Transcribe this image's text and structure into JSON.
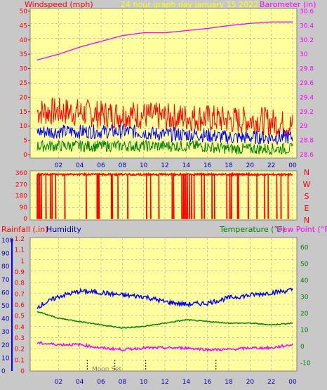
{
  "header": {
    "left_label": "Windspeed (mph)",
    "center_label": "24 hour graph day   January 15 2022",
    "right_label": "Barometer (in)"
  },
  "colors": {
    "background": "#c8c8c8",
    "plot_bg": "#ffffa0",
    "red": "#ff0000",
    "blue": "#0000ff",
    "green": "#008000",
    "magenta": "#ff00ff",
    "yellow_text": "#ffff00",
    "dark_blue_text": "#0000c0"
  },
  "compass": [
    "N",
    "W",
    "S",
    "E",
    "N"
  ],
  "bottom": {
    "rain_label": "Rainfall (.in)",
    "humidity_label": "Humidity",
    "temp_label": "Temperature (°F)",
    "dew_label": "Dew Point (°F)",
    "moonset_label": "Moon Set"
  },
  "chart_data": [
    {
      "type": "line",
      "x_ticks": [
        "02",
        "04",
        "06",
        "08",
        "10",
        "12",
        "14",
        "16",
        "18",
        "20",
        "22",
        "00"
      ],
      "y_left": {
        "label": "Windspeed (mph)",
        "ticks": [
          0,
          5,
          10,
          15,
          20,
          25,
          30,
          35,
          40,
          45,
          50
        ],
        "ylim": [
          0,
          50
        ]
      },
      "y_right": {
        "label": "Barometer (in)",
        "ticks": [
          "28.6",
          "28.8",
          "29",
          "29.2",
          "29.4",
          "29.6",
          "29.8",
          "30",
          "30.2",
          "30.4",
          "30.6"
        ],
        "ylim": [
          28.6,
          30.6
        ]
      },
      "series": [
        {
          "name": "Barometer",
          "color": "#ff00ff",
          "x_hours": [
            0,
            2,
            4,
            6,
            8,
            10,
            12,
            14,
            16,
            18,
            20,
            22,
            24
          ],
          "values": [
            29.92,
            30.0,
            30.1,
            30.18,
            30.26,
            30.3,
            30.3,
            30.33,
            30.36,
            30.4,
            30.43,
            30.45,
            30.45
          ]
        },
        {
          "name": "Gust",
          "color": "#ff0000",
          "x_hours": [
            0,
            3,
            6,
            9,
            12,
            15,
            18,
            21,
            24
          ],
          "values": [
            15,
            15,
            14,
            14,
            13,
            13,
            12,
            12,
            10
          ]
        },
        {
          "name": "Average",
          "color": "#0000ff",
          "x_hours": [
            0,
            3,
            6,
            9,
            12,
            15,
            18,
            21,
            24
          ],
          "values": [
            8,
            8,
            8,
            8,
            7,
            7,
            6,
            6,
            6
          ]
        },
        {
          "name": "Wind speed",
          "color": "#008000",
          "x_hours": [
            0,
            3,
            6,
            9,
            12,
            15,
            18,
            21,
            24
          ],
          "values": [
            3,
            3,
            3,
            3,
            3,
            3,
            2,
            2,
            2
          ]
        }
      ]
    },
    {
      "type": "line",
      "x_ticks": [
        "02",
        "04",
        "06",
        "08",
        "10",
        "12",
        "14",
        "16",
        "18",
        "20",
        "22",
        "00"
      ],
      "y_left": {
        "ticks": [
          0,
          90,
          180,
          270,
          360
        ],
        "ylim": [
          0,
          360
        ]
      },
      "series": [
        {
          "name": "Wind direction",
          "color": "#ff0000",
          "baseline": 355,
          "drops_to": 0
        }
      ]
    },
    {
      "type": "line",
      "x_ticks": [
        "02",
        "04",
        "06",
        "08",
        "10",
        "12",
        "14",
        "16",
        "18",
        "20",
        "22",
        "00"
      ],
      "y_left_rain": {
        "label": "Rainfall (.in)",
        "ticks": [
          "0",
          "0.1",
          "0.2",
          "0.3",
          "0.4",
          "0.5",
          "0.6",
          "0.7",
          "0.8",
          "0.9",
          "1",
          "1.1",
          "1.2"
        ],
        "ylim": [
          0,
          1.2
        ]
      },
      "y_left_humidity": {
        "label": "Humidity",
        "ticks": [
          0,
          10,
          20,
          30,
          40,
          50,
          60,
          70,
          80,
          90,
          100
        ],
        "ylim": [
          0,
          100
        ]
      },
      "y_right": {
        "label": "Temperature (°F)",
        "ticks": [
          -10,
          0,
          10,
          20,
          30,
          40,
          50,
          60
        ],
        "ylim": [
          -15,
          65
        ]
      },
      "series": [
        {
          "name": "Humidity",
          "color": "#0000ff",
          "axis": "humidity",
          "x_hours": [
            0,
            1,
            2,
            4,
            6,
            8,
            10,
            12,
            14,
            16,
            18,
            20,
            22,
            24
          ],
          "values": [
            49,
            53,
            57,
            61,
            60,
            58,
            57,
            53,
            51,
            52,
            56,
            58,
            60,
            62
          ]
        },
        {
          "name": "Temperature",
          "color": "#008000",
          "axis": "temp",
          "x_hours": [
            0,
            2,
            4,
            6,
            8,
            10,
            12,
            14,
            16,
            18,
            20,
            22,
            24
          ],
          "values": [
            21,
            17,
            15,
            13,
            11,
            12,
            14,
            16,
            15,
            14,
            14,
            13,
            14
          ]
        },
        {
          "name": "Dew Point",
          "color": "#ff00ff",
          "axis": "temp",
          "x_hours": [
            0,
            2,
            4,
            6,
            8,
            10,
            12,
            14,
            16,
            18,
            20,
            22,
            24
          ],
          "values": [
            2,
            1,
            1,
            -1,
            -2,
            -1,
            -1,
            -1,
            -2,
            -2,
            -1,
            -1,
            1
          ]
        }
      ]
    }
  ]
}
